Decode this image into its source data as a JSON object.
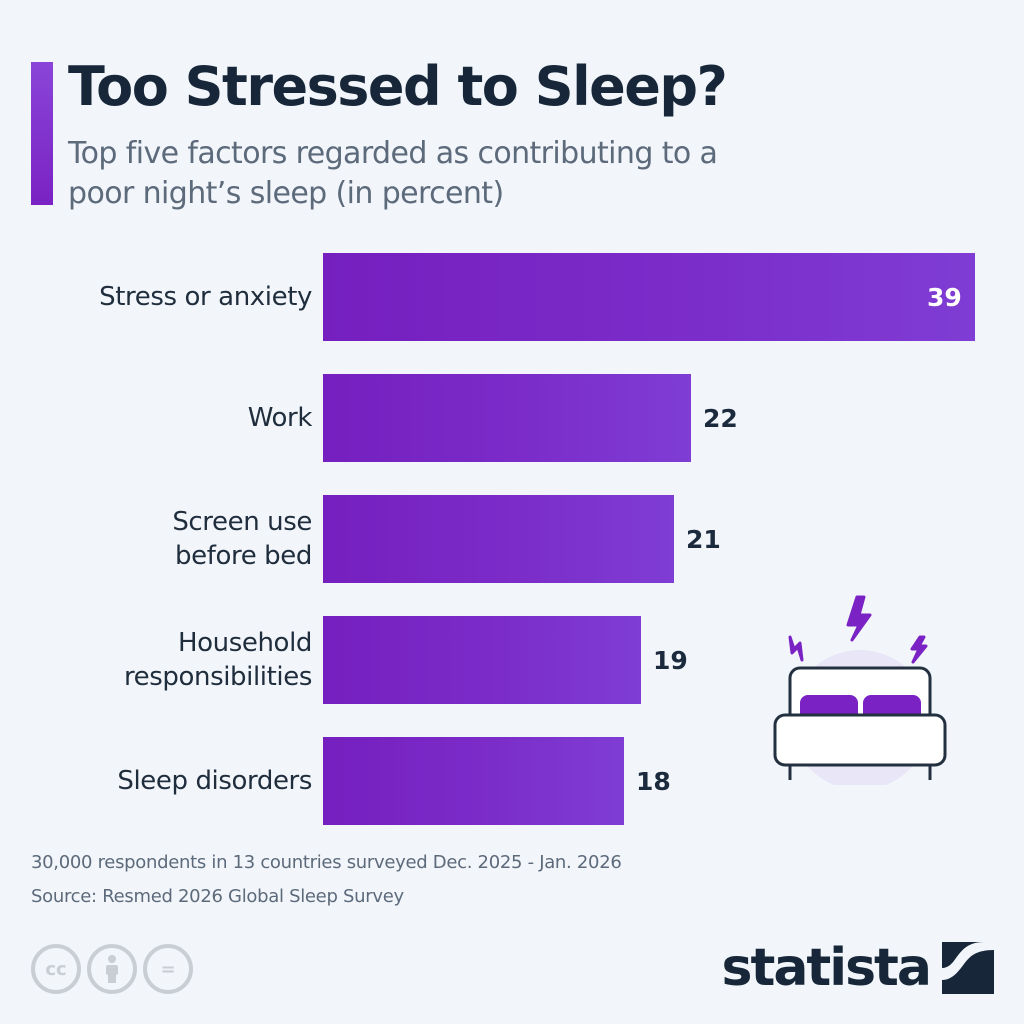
{
  "header": {
    "title": "Too Stressed to Sleep?",
    "subtitle": "Top five factors regarded as contributing to a poor night’s sleep (in percent)"
  },
  "colors": {
    "background": "#f2f6fa",
    "bar_start": "#751fbf",
    "bar_end": "#7f3dd4",
    "accent": "#7a22c3",
    "title": "#172638",
    "subtitle": "#5c6a7b",
    "brand": "#172638"
  },
  "chart_data": {
    "type": "bar",
    "orientation": "horizontal",
    "title": "Too Stressed to Sleep?",
    "subtitle": "Top five factors regarded as contributing to a poor night’s sleep (in percent)",
    "categories": [
      "Stress or anxiety",
      "Work",
      "Screen use before bed",
      "Household responsibilities",
      "Sleep disorders"
    ],
    "values": [
      39,
      22,
      21,
      19,
      18
    ],
    "unit": "percent",
    "xlabel": "",
    "ylabel": "",
    "xlim": [
      0,
      39
    ],
    "grid": false,
    "legend": "none",
    "data_labels": true
  },
  "rows": [
    {
      "label": "Stress or anxiety",
      "value": "39"
    },
    {
      "label": "Work",
      "value": "22"
    },
    {
      "label": "Screen use\nbefore bed",
      "value": "21"
    },
    {
      "label": "Household\nresponsibilities",
      "value": "19"
    },
    {
      "label": "Sleep disorders",
      "value": "18"
    }
  ],
  "illustration": {
    "icon": "bed-with-lightning-icon"
  },
  "footer": {
    "note": "30,000 respondents in 13 countries surveyed Dec. 2025 - Jan. 2026",
    "source": "Source: Resmed 2026 Global Sleep Survey",
    "license_icons": [
      "cc-icon",
      "attribution-icon",
      "no-derivatives-icon"
    ],
    "cc_label": "cc",
    "nd_label": "=",
    "brand": "statista"
  }
}
